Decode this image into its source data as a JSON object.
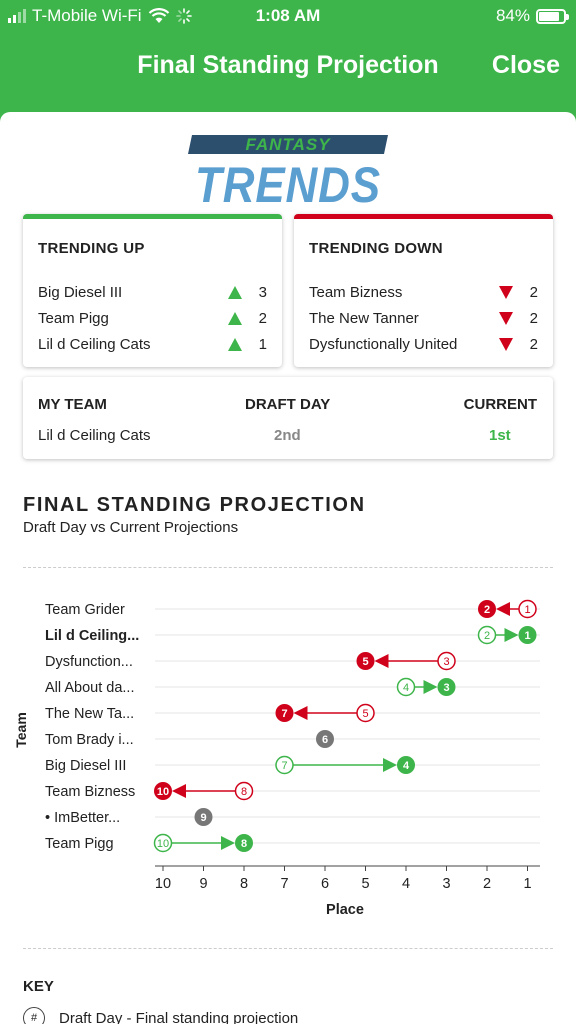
{
  "status": {
    "carrier": "T-Mobile Wi-Fi",
    "time": "1:08 AM",
    "battery": "84%",
    "battery_level": 0.84
  },
  "nav": {
    "title": "Final Standing Projection",
    "close": "Close"
  },
  "logo": {
    "top": "FANTASY",
    "bottom": "TRENDS"
  },
  "trending_up": {
    "title": "TRENDING UP",
    "color": "#3db54a",
    "items": [
      {
        "name": "Big Diesel III",
        "count": "3"
      },
      {
        "name": "Team Pigg",
        "count": "2"
      },
      {
        "name": "Lil d Ceiling Cats",
        "count": "1"
      }
    ]
  },
  "trending_down": {
    "title": "TRENDING DOWN",
    "color": "#d0021b",
    "items": [
      {
        "name": "Team Bizness",
        "count": "2"
      },
      {
        "name": "The New Tanner",
        "count": "2"
      },
      {
        "name": "Dysfunctionally United",
        "count": "2"
      }
    ]
  },
  "my_team": {
    "headers": {
      "team": "MY TEAM",
      "draft": "DRAFT DAY",
      "current": "CURRENT"
    },
    "team": "Lil d Ceiling Cats",
    "draft": "2nd",
    "current": "1st"
  },
  "section": {
    "title": "FINAL STANDING PROJECTION",
    "subtitle": "Draft Day vs Current Projections"
  },
  "chart_data": {
    "type": "dumbbell",
    "ylabel": "Team",
    "xlabel": "Place",
    "xlim": [
      10,
      1
    ],
    "xticks": [
      "10",
      "9",
      "8",
      "7",
      "6",
      "5",
      "4",
      "3",
      "2",
      "1"
    ],
    "colors": {
      "up": "#3db54a",
      "down": "#d0021b",
      "same": "#777777"
    },
    "teams": [
      {
        "label": "Team Grider",
        "draft": 1,
        "current": 2,
        "bold": false
      },
      {
        "label": "Lil d Ceiling...",
        "draft": 2,
        "current": 1,
        "bold": true
      },
      {
        "label": "Dysfunction...",
        "draft": 3,
        "current": 5,
        "bold": false
      },
      {
        "label": "All About da...",
        "draft": 4,
        "current": 3,
        "bold": false
      },
      {
        "label": "The New Ta...",
        "draft": 5,
        "current": 7,
        "bold": false
      },
      {
        "label": "Tom Brady i...",
        "draft": 6,
        "current": 6,
        "bold": false
      },
      {
        "label": "Big Diesel III",
        "draft": 7,
        "current": 4,
        "bold": false
      },
      {
        "label": "Team Bizness",
        "draft": 8,
        "current": 10,
        "bold": false
      },
      {
        "label": "• ImBetter...",
        "draft": 9,
        "current": 9,
        "bold": false
      },
      {
        "label": "Team Pigg",
        "draft": 10,
        "current": 8,
        "bold": false
      }
    ]
  },
  "key": {
    "title": "KEY",
    "symbol": "#",
    "draft_day": "Draft Day - Final standing projection"
  }
}
